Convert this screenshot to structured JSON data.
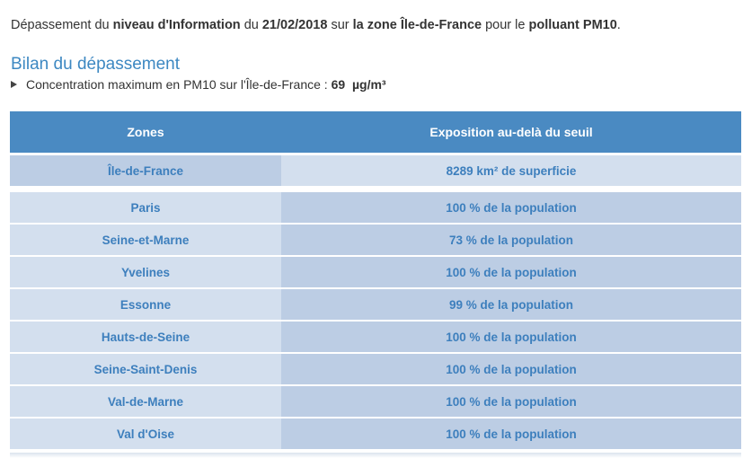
{
  "intro": {
    "t1": "Dépassement du ",
    "b1": "niveau d'Information",
    "t2": " du ",
    "b2": "21/02/2018",
    "t3": " sur ",
    "b3": "la zone Île-de-France",
    "t4": " pour le ",
    "b4": "polluant PM10",
    "t5": "."
  },
  "section_title": "Bilan du dépassement",
  "max": {
    "text": "Concentration maximum en PM10 sur l'Île-de-France : ",
    "value": "69",
    "unit": "µg/m³"
  },
  "table": {
    "headers": [
      "Zones",
      "Exposition au-delà du seuil"
    ],
    "region": {
      "zone": "Île-de-France",
      "exposure": "8289 km² de superficie"
    },
    "rows": [
      {
        "zone": "Paris",
        "exposure": "100 % de la population"
      },
      {
        "zone": "Seine-et-Marne",
        "exposure": "73 % de la population"
      },
      {
        "zone": "Yvelines",
        "exposure": "100 % de la population"
      },
      {
        "zone": "Essonne",
        "exposure": "99 % de la population"
      },
      {
        "zone": "Hauts-de-Seine",
        "exposure": "100 % de la population"
      },
      {
        "zone": "Seine-Saint-Denis",
        "exposure": "100 % de la population"
      },
      {
        "zone": "Val-de-Marne",
        "exposure": "100 % de la population"
      },
      {
        "zone": "Val d'Oise",
        "exposure": "100 % de la population"
      }
    ]
  }
}
